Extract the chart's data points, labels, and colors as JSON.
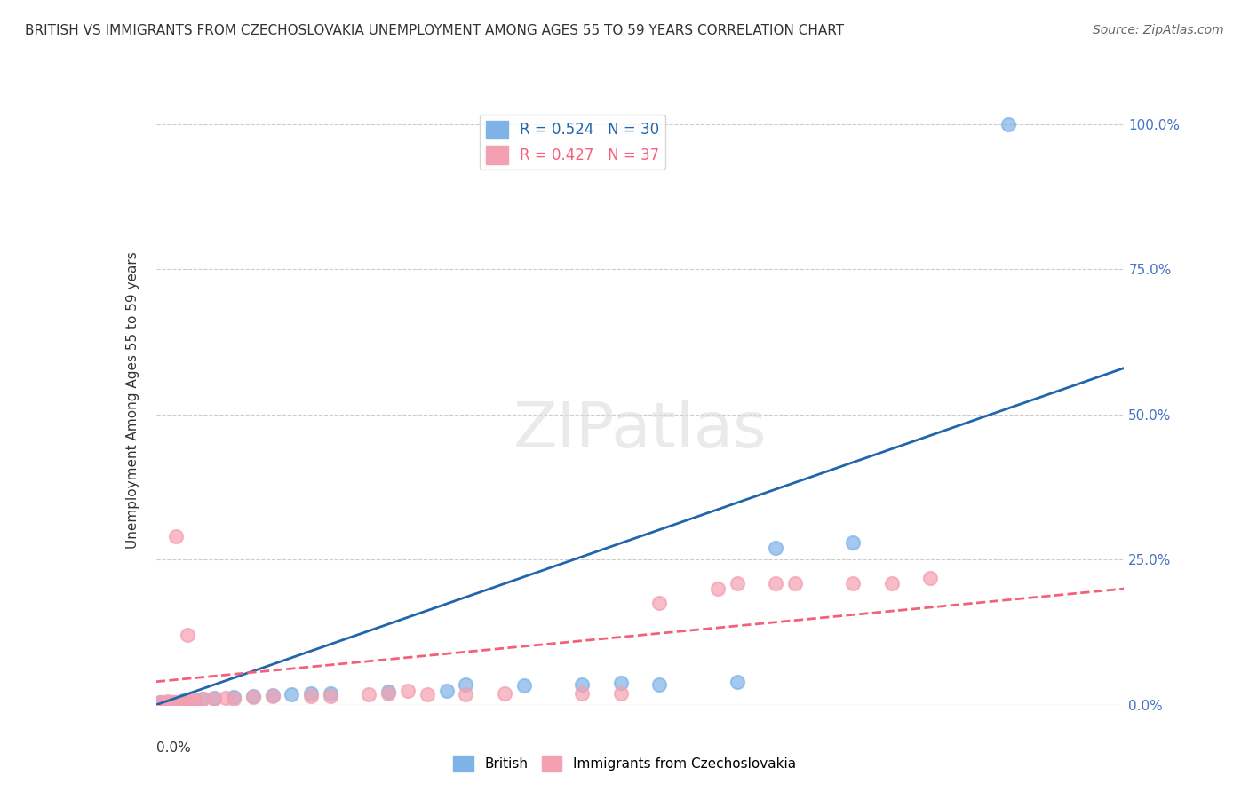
{
  "title": "BRITISH VS IMMIGRANTS FROM CZECHOSLOVAKIA UNEMPLOYMENT AMONG AGES 55 TO 59 YEARS CORRELATION CHART",
  "source": "Source: ZipAtlas.com",
  "ylabel": "Unemployment Among Ages 55 to 59 years",
  "ylabel_right_ticks": [
    "0.0%",
    "25.0%",
    "50.0%",
    "75.0%",
    "100.0%"
  ],
  "ylabel_right_vals": [
    0.0,
    0.25,
    0.5,
    0.75,
    1.0
  ],
  "watermark": "ZIPatlas",
  "legend1_label": "R = 0.524   N = 30",
  "legend2_label": "R = 0.427   N = 37",
  "british_color": "#7FB3E8",
  "czech_color": "#F4A0B0",
  "british_line_color": "#2166AC",
  "czech_line_color": "#F4607A",
  "xlim": [
    0.0,
    0.25
  ],
  "ylim": [
    0.0,
    1.05
  ],
  "british_scatter": [
    [
      0.001,
      0.005
    ],
    [
      0.002,
      0.003
    ],
    [
      0.003,
      0.002
    ],
    [
      0.004,
      0.004
    ],
    [
      0.005,
      0.003
    ],
    [
      0.005,
      0.005
    ],
    [
      0.006,
      0.005
    ],
    [
      0.007,
      0.007
    ],
    [
      0.008,
      0.006
    ],
    [
      0.009,
      0.008
    ],
    [
      0.01,
      0.008
    ],
    [
      0.012,
      0.01
    ],
    [
      0.015,
      0.012
    ],
    [
      0.02,
      0.013
    ],
    [
      0.025,
      0.015
    ],
    [
      0.03,
      0.016
    ],
    [
      0.035,
      0.018
    ],
    [
      0.04,
      0.02
    ],
    [
      0.045,
      0.02
    ],
    [
      0.06,
      0.022
    ],
    [
      0.075,
      0.025
    ],
    [
      0.08,
      0.035
    ],
    [
      0.095,
      0.033
    ],
    [
      0.11,
      0.035
    ],
    [
      0.12,
      0.038
    ],
    [
      0.13,
      0.035
    ],
    [
      0.15,
      0.04
    ],
    [
      0.16,
      0.27
    ],
    [
      0.18,
      0.28
    ],
    [
      0.22,
      1.0
    ]
  ],
  "czech_scatter": [
    [
      0.001,
      0.005
    ],
    [
      0.002,
      0.004
    ],
    [
      0.003,
      0.003
    ],
    [
      0.003,
      0.006
    ],
    [
      0.004,
      0.005
    ],
    [
      0.005,
      0.004
    ],
    [
      0.005,
      0.29
    ],
    [
      0.006,
      0.003
    ],
    [
      0.007,
      0.005
    ],
    [
      0.008,
      0.007
    ],
    [
      0.008,
      0.12
    ],
    [
      0.009,
      0.008
    ],
    [
      0.01,
      0.007
    ],
    [
      0.012,
      0.01
    ],
    [
      0.015,
      0.01
    ],
    [
      0.018,
      0.012
    ],
    [
      0.02,
      0.01
    ],
    [
      0.025,
      0.013
    ],
    [
      0.03,
      0.015
    ],
    [
      0.04,
      0.015
    ],
    [
      0.045,
      0.015
    ],
    [
      0.055,
      0.018
    ],
    [
      0.06,
      0.02
    ],
    [
      0.065,
      0.025
    ],
    [
      0.07,
      0.018
    ],
    [
      0.08,
      0.018
    ],
    [
      0.09,
      0.02
    ],
    [
      0.11,
      0.02
    ],
    [
      0.12,
      0.02
    ],
    [
      0.13,
      0.175
    ],
    [
      0.145,
      0.2
    ],
    [
      0.15,
      0.21
    ],
    [
      0.16,
      0.21
    ],
    [
      0.165,
      0.21
    ],
    [
      0.18,
      0.21
    ],
    [
      0.19,
      0.21
    ],
    [
      0.2,
      0.218
    ]
  ],
  "british_line_x": [
    0.0,
    0.25
  ],
  "british_line_y": [
    0.0,
    0.58
  ],
  "czech_line_x": [
    0.0,
    0.25
  ],
  "czech_line_y": [
    0.04,
    0.2
  ]
}
